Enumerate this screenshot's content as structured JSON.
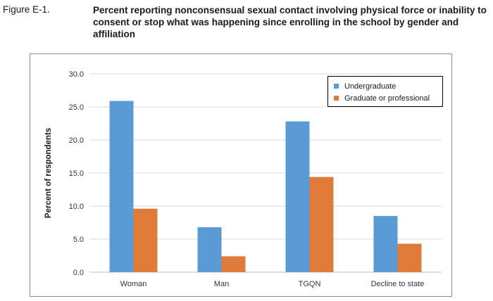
{
  "figure": {
    "label": "Figure E-1.",
    "title": "Percent reporting nonconsensual sexual contact involving physical force or inability to consent or stop what was happening since enrolling in the school by gender and affiliation"
  },
  "chart_data": {
    "type": "bar",
    "categories": [
      "Woman",
      "Man",
      "TGQN",
      "Decline to state"
    ],
    "series": [
      {
        "name": "Undergraduate",
        "values": [
          25.9,
          6.8,
          22.8,
          8.5
        ],
        "color": "#5b9bd5"
      },
      {
        "name": "Graduate or professional",
        "values": [
          9.6,
          2.4,
          14.4,
          4.3
        ],
        "color": "#e07b39"
      }
    ],
    "ylabel": "Percent of respondents",
    "xlabel": "",
    "ylim": [
      0,
      30
    ],
    "yticks": [
      "0.0",
      "5.0",
      "10.0",
      "15.0",
      "20.0",
      "25.0",
      "30.0"
    ],
    "grid": true,
    "legend_position": "top-right"
  }
}
